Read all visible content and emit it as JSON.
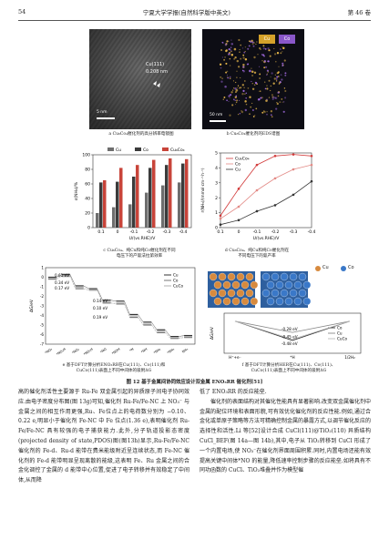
{
  "header": {
    "page_number": "54",
    "journal": "宁夏大学学报(自然科学版中英文)",
    "volume": "第 46 卷"
  },
  "panel_a": {
    "caption": "a Cu₆Co₄催化剂的高分辨率电镜图",
    "label_plane": "Cu(111)",
    "label_spacing": "0.208 nm",
    "scalebar": "5 nm"
  },
  "panel_b": {
    "caption": "b Cu₆Co₄催化剂的EDS谱图",
    "tag_cu": "Cu",
    "tag_co": "Co",
    "scalebar": "50 nm"
  },
  "panel_c": {
    "caption_l1": "c Cu₆Co₄、纯Cu和纯Co催化剂在不同",
    "caption_l2": "电压下的产氨法拉第效率",
    "legend": [
      "Cu",
      "Co",
      "Cu₆Co₄"
    ],
    "colors": [
      "#6e6e6e",
      "#3b3b3b",
      "#c8443a"
    ]
  },
  "panel_d": {
    "caption_l1": "d Cu₆Co₄、纯Cu和纯Co催化剂在",
    "caption_l2": "不同电压下的氨产率",
    "legend": [
      "Cu₆Co₄",
      "Co",
      "Cu"
    ],
    "colors": [
      "#d23a3a",
      "#e38a86",
      "#333333"
    ]
  },
  "panel_e": {
    "caption_l1": "e 基于DFT计算分析ENO₃RR在Cu(111)、Co(111)和",
    "caption_l2": "CuCo(111)表面上不同中间体的吸附ΔG",
    "legend": [
      "Cu",
      "Co",
      "CuCo"
    ],
    "values": [
      "0.61 eV",
      "0.34 eV",
      "0.17 eV",
      "0.14 eV",
      "0.10 eV",
      "0.19 eV"
    ]
  },
  "panel_f": {
    "caption_l1": "f 基于DFT计算分析HER在Cu(111)、Co(111)、",
    "caption_l2": "CuCo(111)表面上不同中间体的吸附ΔG",
    "legend_cu": "Cu",
    "legend_co": "Co",
    "values": [
      "-0.28 eV",
      "-0.45 eV",
      "-0.48 eV"
    ],
    "xlabels": [
      "H⁺+e⁻",
      "*H",
      "1/2H₂"
    ],
    "series": [
      "Co",
      "Cu",
      "CuCo"
    ]
  },
  "chart_data": [
    {
      "type": "bar",
      "xlabel": "U/(vs.RHE)/V",
      "ylabel": "ε(NH₃)/%",
      "categories": [
        "0.1",
        "0",
        "-0.1",
        "-0.2",
        "-0.3",
        "-0.4"
      ],
      "ylim": [
        0,
        100
      ],
      "yticks": [
        0,
        20,
        40,
        60,
        80,
        100
      ],
      "series": [
        {
          "name": "Cu",
          "values": [
            20,
            28,
            32,
            48,
            58,
            62
          ]
        },
        {
          "name": "Co",
          "values": [
            62,
            63,
            70,
            82,
            86,
            88
          ]
        },
        {
          "name": "Cu₆Co₄",
          "values": [
            65,
            82,
            86,
            93,
            95,
            94
          ]
        }
      ]
    },
    {
      "type": "line",
      "xlabel": "U/(vs.RHE)/V",
      "ylabel": "r(NH₃)/(mmol·cm⁻²·h⁻¹)",
      "x": [
        0.1,
        0,
        -0.1,
        -0.2,
        -0.3,
        -0.4
      ],
      "xticks": [
        "0.1",
        "0",
        "-0.1",
        "-0.2",
        "-0.3",
        "-0.4"
      ],
      "ylim": [
        0,
        5
      ],
      "yticks": [
        0,
        1,
        2,
        3,
        4,
        5
      ],
      "series": [
        {
          "name": "Cu₆Co₄",
          "values": [
            0.8,
            2.6,
            4.2,
            4.8,
            4.9,
            4.8
          ]
        },
        {
          "name": "Co",
          "values": [
            0.6,
            1.4,
            2.5,
            3.3,
            3.9,
            4.2
          ]
        },
        {
          "name": "Cu",
          "values": [
            0.2,
            0.5,
            1.1,
            1.5,
            2.2,
            3.1
          ]
        }
      ]
    },
    {
      "type": "line",
      "ylabel": "ΔG/eV",
      "ylim": [
        -7,
        1
      ],
      "yticks": [
        1,
        0,
        -1,
        -2,
        -3,
        -4,
        -5,
        -6,
        -7
      ],
      "categories": [
        "*NO₃",
        "*NO₃H",
        "*NO₂",
        "*NO₂H",
        "*NO",
        "*NOH",
        "*N",
        "*NH",
        "*NH₂",
        "*NH₃",
        "NH₃"
      ],
      "series": [
        {
          "name": "Cu",
          "values": [
            0,
            0.3,
            -0.9,
            -1.2,
            -2.4,
            -2.5,
            -3.9,
            -4.7,
            -5.5,
            -6.2,
            -6.1
          ]
        },
        {
          "name": "Co",
          "values": [
            -0.2,
            0.15,
            -1.2,
            -1.35,
            -2.7,
            -2.8,
            -4.2,
            -5.0,
            -5.8,
            -6.4,
            -6.3
          ]
        },
        {
          "name": "CuCo",
          "values": [
            -0.1,
            0.07,
            -1.05,
            -1.3,
            -2.55,
            -2.7,
            -4.05,
            -4.9,
            -5.65,
            -6.3,
            -6.2
          ]
        }
      ]
    },
    {
      "type": "line",
      "ylabel": "ΔG/eV",
      "ylim": [
        -0.8,
        0.2
      ],
      "categories": [
        "H⁺+e⁻",
        "*H",
        "1/2H₂"
      ],
      "series": [
        {
          "name": "Co",
          "values": [
            0,
            -0.48,
            0
          ]
        },
        {
          "name": "Cu",
          "values": [
            0,
            -0.28,
            0
          ]
        },
        {
          "name": "CuCo",
          "values": [
            0,
            -0.45,
            0
          ]
        }
      ]
    }
  ],
  "figure_caption": "图 12 基于金属间协同效应设计双金属 ENO₃RR 催化剂[51]",
  "body": {
    "left": "高的催化剂活性主要源于 Ru-Fe 双金属引起的异质原子间电子协同效应.由电子密度分布图(图 13g)可知,催化剂 Ru-Fe/Fe-NC 上 NO₃⁻ 与金属之间的相互作用更强,Ru、Fe位点上的电荷数分别为 −0.10、0.22 e,明显小于催化剂 Fe-NC 中 Fe 位点(1.36 e),表明催化剂 Ru-Fe/Fe-NC 具有较强的电子捕获能力.此外,分子轨道投影态密度(projected density of state,PDOS)图(图13h)显示,Ru-Fe/Fe-NC 催化剂的 Fe-d、Ru-d 能带在费米能级附近呈连续状态,而 Fe-NC 催化剂的 Fe-d 能带明显呈现离散的能级,这表明 Fe、Ru 金属之间的合金化调控了金属的 d 能带中心位置,促进了电子转移并有效稳定了中间体,从而降",
    "right_p1": "低了 ENO₃RR 的反应能垒.",
    "right_p2": "催化剂的表面结构对其催化性能具有显著影响.改变双金属催化剂中金属的配位环境和表面形貌,可有效优化催化剂的反应性能.例如,通过合金化或单原子策略等方法可精确控制金属的暴露方式,以调节催化反应的选择性和活性.Li 等[52]设计合成 CuCl(111)@TiO₂(110) 异质结构 CuCl_BEF(图 14a—图 14b),其中,电子从 TiO₂转移到 CuCl 形成了一个内置电场,使 NO₃⁻在催化剂界面周围积累.同时,内置电场还能有效提高关键中间体*NO 的能量,降低速率控制步骤的反应能垒.如将具有不同功函数的 CuCl、TiO₂堆叠并作为模型催"
  }
}
